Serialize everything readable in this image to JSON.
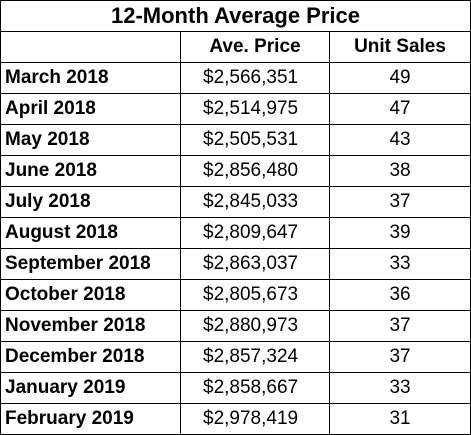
{
  "title": "12-Month Average Price",
  "columns": {
    "month": "",
    "price": "Ave. Price",
    "sales": "Unit Sales"
  },
  "rows": [
    {
      "month": "March 2018",
      "price": "$2,566,351",
      "sales": "49"
    },
    {
      "month": "April 2018",
      "price": "$2,514,975",
      "sales": "47"
    },
    {
      "month": "May 2018",
      "price": "$2,505,531",
      "sales": "43"
    },
    {
      "month": "June 2018",
      "price": "$2,856,480",
      "sales": "38"
    },
    {
      "month": "July 2018",
      "price": "$2,845,033",
      "sales": "37"
    },
    {
      "month": "August 2018",
      "price": "$2,809,647",
      "sales": "39"
    },
    {
      "month": "September 2018",
      "price": "$2,863,037",
      "sales": "33"
    },
    {
      "month": "October 2018",
      "price": "$2,805,673",
      "sales": "36"
    },
    {
      "month": "November 2018",
      "price": "$2,880,973",
      "sales": "37"
    },
    {
      "month": "December 2018",
      "price": "$2,857,324",
      "sales": "37"
    },
    {
      "month": "January 2019",
      "price": "$2,858,667",
      "sales": "33"
    },
    {
      "month": "February 2019",
      "price": "$2,978,419",
      "sales": "31"
    }
  ]
}
